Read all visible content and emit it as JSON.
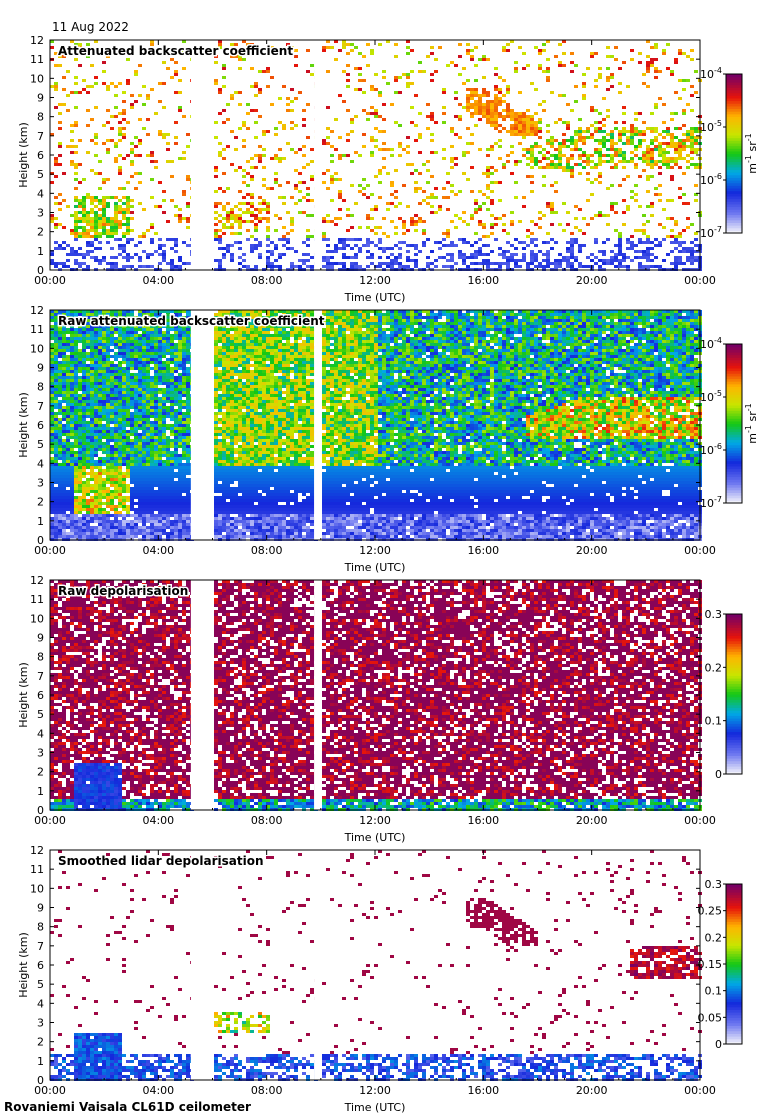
{
  "date": "11 Aug 2022",
  "footer": "Rovaniemi Vaisala CL61D ceilometer",
  "chart_data": [
    {
      "type": "heatmap",
      "title": "Attenuated backscatter coefficient",
      "xlabel": "Time (UTC)",
      "ylabel": "Height (km)",
      "xticks": [
        "00:00",
        "04:00",
        "08:00",
        "12:00",
        "16:00",
        "20:00",
        "00:00"
      ],
      "yticks": [
        "0",
        "1",
        "2",
        "3",
        "4",
        "5",
        "6",
        "7",
        "8",
        "9",
        "10",
        "11",
        "12"
      ],
      "xlim_hours": [
        0,
        24
      ],
      "ylim_km": [
        0,
        12
      ],
      "colorbar": {
        "scale": "log",
        "unit": "m-1 sr-1",
        "ticks": [
          "10-7",
          "10-6",
          "10-5",
          "10-4"
        ],
        "range": [
          1e-07,
          0.0001
        ]
      },
      "data_gaps_hours": [
        [
          5.2,
          6.0
        ],
        [
          9.75,
          10.0
        ]
      ],
      "features": [
        {
          "kind": "low boundary layer",
          "start_hour": 0,
          "end_hour": 24,
          "height_km": [
            0,
            1.8
          ],
          "level": "low"
        },
        {
          "kind": "convective clouds",
          "start_hour": 0.8,
          "end_hour": 2.9,
          "height_km": [
            0,
            4
          ],
          "level": "high"
        },
        {
          "kind": "cloud layer",
          "start_hour": 6.0,
          "end_hour": 8.0,
          "height_km": [
            2.6,
            3.5
          ],
          "level": "high"
        },
        {
          "kind": "elevated aerosol/cloud",
          "start_hour": 15.3,
          "end_hour": 18.0,
          "height_km": [
            7,
            9.6
          ],
          "level": "medium"
        },
        {
          "kind": "cirrus",
          "start_hour": 17.5,
          "end_hour": 24,
          "height_km": [
            5.3,
            7.5
          ],
          "level": "medium-high"
        }
      ]
    },
    {
      "type": "heatmap",
      "title": "Raw attenuated backscatter coefficient",
      "xlabel": "Time (UTC)",
      "ylabel": "Height (km)",
      "xticks": [
        "00:00",
        "04:00",
        "08:00",
        "12:00",
        "16:00",
        "20:00",
        "00:00"
      ],
      "yticks": [
        "0",
        "1",
        "2",
        "3",
        "4",
        "5",
        "6",
        "7",
        "8",
        "9",
        "10",
        "11",
        "12"
      ],
      "xlim_hours": [
        0,
        24
      ],
      "ylim_km": [
        0,
        12
      ],
      "colorbar": {
        "scale": "log",
        "unit": "m-1 sr-1",
        "ticks": [
          "10-7",
          "10-6",
          "10-5",
          "10-4"
        ],
        "range": [
          1e-07,
          0.0001
        ]
      },
      "data_gaps_hours": [
        [
          5.2,
          6.0
        ],
        [
          9.75,
          10.0
        ]
      ]
    },
    {
      "type": "heatmap",
      "title": "Raw depolarisation",
      "xlabel": "Time (UTC)",
      "ylabel": "Height (km)",
      "xticks": [
        "00:00",
        "04:00",
        "08:00",
        "12:00",
        "16:00",
        "20:00",
        "00:00"
      ],
      "yticks": [
        "0",
        "1",
        "2",
        "3",
        "4",
        "5",
        "6",
        "7",
        "8",
        "9",
        "10",
        "11",
        "12"
      ],
      "xlim_hours": [
        0,
        24
      ],
      "ylim_km": [
        0,
        12
      ],
      "colorbar": {
        "scale": "linear",
        "unit": "",
        "ticks": [
          "0",
          "0.1",
          "0.2",
          "0.3"
        ],
        "range": [
          0,
          0.3
        ]
      },
      "data_gaps_hours": [
        [
          5.2,
          6.0
        ],
        [
          9.75,
          10.0
        ]
      ]
    },
    {
      "type": "heatmap",
      "title": "Smoothed lidar depolarisation",
      "xlabel": "Time (UTC)",
      "ylabel": "Height (km)",
      "xticks": [
        "00:00",
        "04:00",
        "08:00",
        "12:00",
        "16:00",
        "20:00",
        "00:00"
      ],
      "yticks": [
        "0",
        "1",
        "2",
        "3",
        "4",
        "5",
        "6",
        "7",
        "8",
        "9",
        "10",
        "11",
        "12"
      ],
      "xlim_hours": [
        0,
        24
      ],
      "ylim_km": [
        0,
        12
      ],
      "colorbar": {
        "scale": "linear",
        "unit": "",
        "ticks": [
          "0",
          "0.05",
          "0.1",
          "0.15",
          "0.2",
          "0.25",
          "0.3"
        ],
        "range": [
          0,
          0.3
        ]
      },
      "data_gaps_hours": [
        [
          5.2,
          6.0
        ],
        [
          9.75,
          10.0
        ]
      ]
    }
  ]
}
